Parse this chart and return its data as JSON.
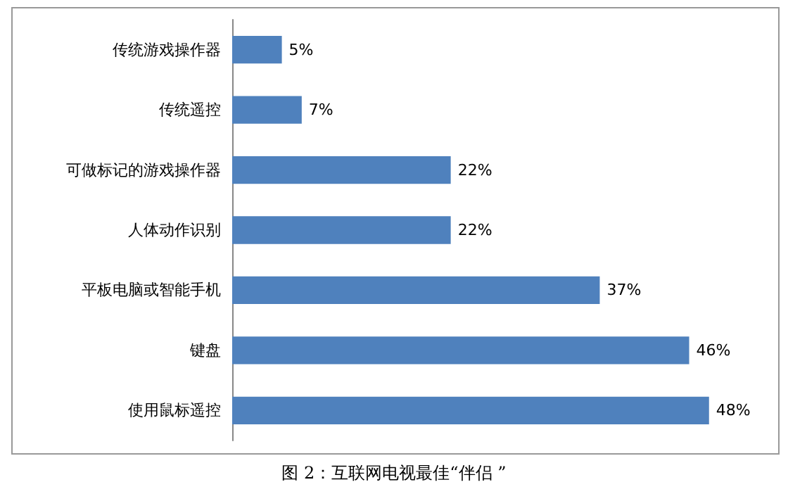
{
  "chart_data": {
    "type": "bar",
    "orientation": "horizontal",
    "title": "图 2：互联网电视最佳“伴侣 ”",
    "categories": [
      "传统游戏操作器",
      "传统遥控",
      "可做标记的游戏操作器",
      "人体动作识别",
      "平板电脑或智能手机",
      "键盘",
      "使用鼠标遥控"
    ],
    "values": [
      5,
      7,
      22,
      22,
      37,
      46,
      48
    ],
    "value_labels": [
      "5%",
      "7%",
      "22%",
      "22%",
      "37%",
      "46%",
      "48%"
    ],
    "color": "#4f81bd"
  }
}
